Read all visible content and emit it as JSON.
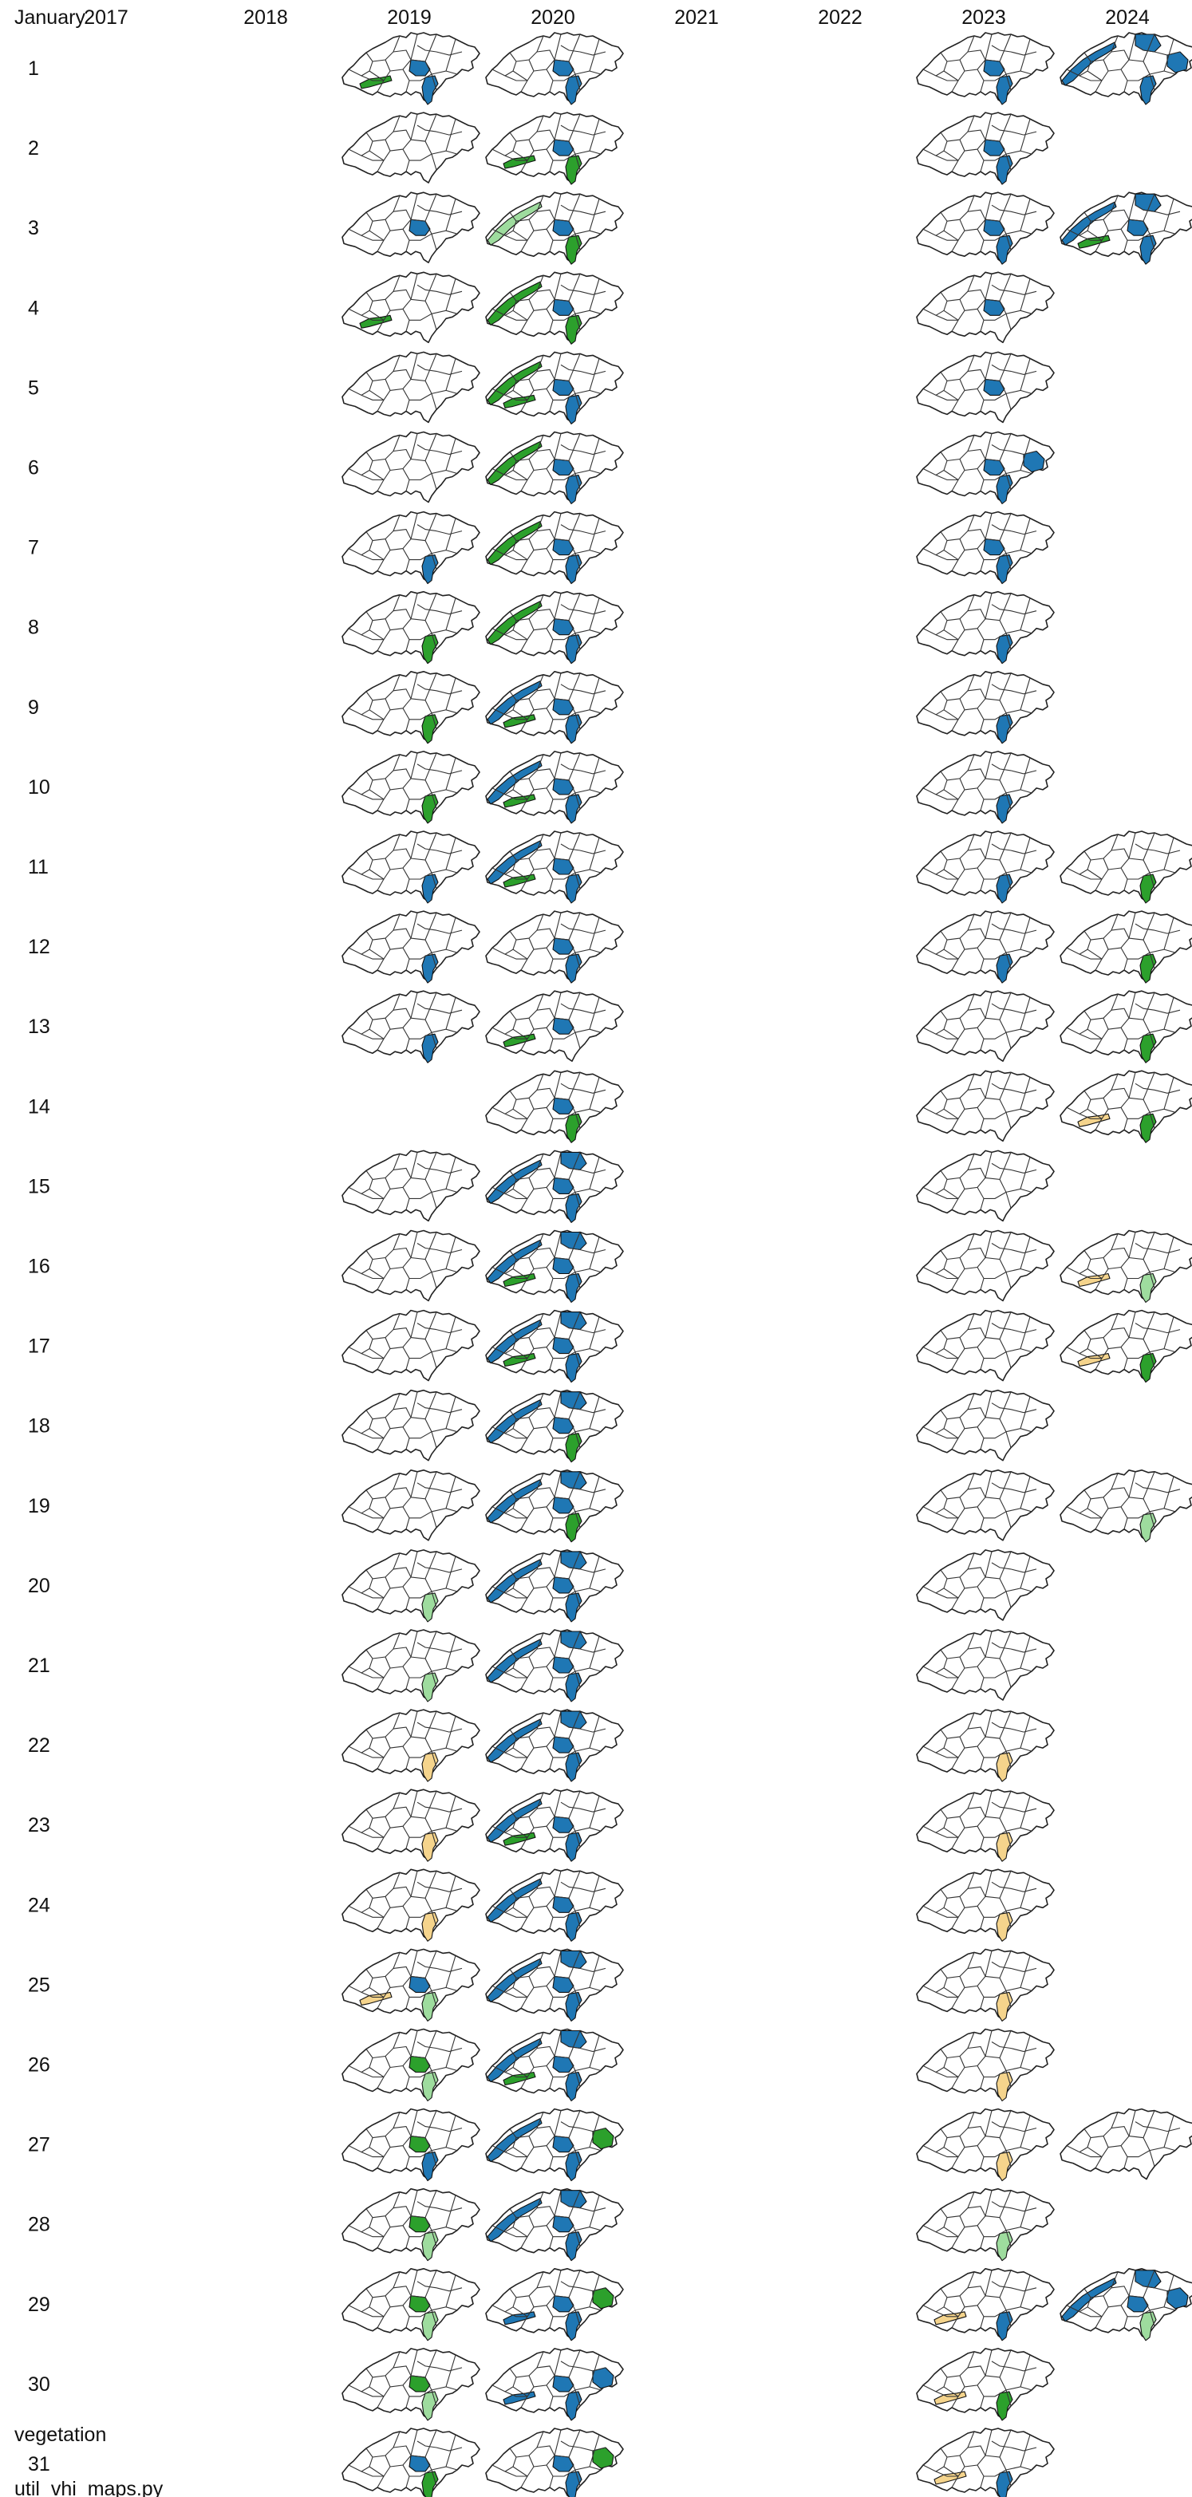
{
  "month": "January",
  "years": [
    "2017",
    "2018",
    "2019",
    "2020",
    "2021",
    "2022",
    "2023",
    "2024"
  ],
  "day_labels": [
    "1",
    "2",
    "3",
    "4",
    "5",
    "6",
    "7",
    "8",
    "9",
    "10",
    "11",
    "12",
    "13",
    "14",
    "15",
    "16",
    "17",
    "18",
    "19",
    "20",
    "21",
    "22",
    "23",
    "24",
    "25",
    "26",
    "27",
    "28",
    "29",
    "30",
    "31"
  ],
  "footer": {
    "category": "vegetation",
    "filename": "util_vhi_maps.py"
  },
  "colors": {
    "no_data": "#ffffff",
    "healthy": "#1f77b4",
    "moderate": "#2ca02c",
    "mild": "#9edc9e",
    "stress": "#f5d48c",
    "outline": "#222222"
  },
  "maps": [
    {
      "day": 1,
      "year": "2019",
      "regions": [
        "lake-geneva:moderate",
        "center:healthy",
        "south:healthy"
      ]
    },
    {
      "day": 1,
      "year": "2020",
      "regions": [
        "center:healthy",
        "south:healthy"
      ]
    },
    {
      "day": 1,
      "year": "2023",
      "regions": [
        "center:healthy",
        "south:healthy"
      ]
    },
    {
      "day": 1,
      "year": "2024",
      "regions": [
        "west-arc:healthy",
        "north:healthy",
        "east:healthy",
        "south:healthy"
      ]
    },
    {
      "day": 2,
      "year": "2019",
      "regions": []
    },
    {
      "day": 2,
      "year": "2020",
      "regions": [
        "center:healthy",
        "lake-geneva:moderate",
        "south:moderate"
      ]
    },
    {
      "day": 2,
      "year": "2023",
      "regions": [
        "center:healthy",
        "south:healthy"
      ]
    },
    {
      "day": 3,
      "year": "2019",
      "regions": [
        "center:healthy"
      ]
    },
    {
      "day": 3,
      "year": "2020",
      "regions": [
        "west-arc:mild",
        "center:healthy",
        "south:moderate"
      ]
    },
    {
      "day": 3,
      "year": "2023",
      "regions": [
        "center:healthy",
        "south:healthy"
      ]
    },
    {
      "day": 3,
      "year": "2024",
      "regions": [
        "west-arc:healthy",
        "north:healthy",
        "center:healthy",
        "lake-geneva:moderate",
        "south:healthy"
      ]
    },
    {
      "day": 4,
      "year": "2019",
      "regions": [
        "lake-geneva:moderate"
      ]
    },
    {
      "day": 4,
      "year": "2020",
      "regions": [
        "west-arc:moderate",
        "center:healthy",
        "south:moderate"
      ]
    },
    {
      "day": 4,
      "year": "2023",
      "regions": [
        "center:healthy"
      ]
    },
    {
      "day": 5,
      "year": "2019",
      "regions": []
    },
    {
      "day": 5,
      "year": "2020",
      "regions": [
        "west-arc:moderate",
        "center:healthy",
        "lake-geneva:moderate",
        "south:healthy"
      ]
    },
    {
      "day": 5,
      "year": "2023",
      "regions": [
        "center:healthy"
      ]
    },
    {
      "day": 6,
      "year": "2019",
      "regions": []
    },
    {
      "day": 6,
      "year": "2020",
      "regions": [
        "west-arc:moderate",
        "center:healthy",
        "south:healthy"
      ]
    },
    {
      "day": 6,
      "year": "2023",
      "regions": [
        "center:healthy",
        "east:healthy",
        "south:healthy"
      ]
    },
    {
      "day": 7,
      "year": "2019",
      "regions": [
        "south:healthy"
      ]
    },
    {
      "day": 7,
      "year": "2020",
      "regions": [
        "west-arc:moderate",
        "center:healthy",
        "south:healthy"
      ]
    },
    {
      "day": 7,
      "year": "2023",
      "regions": [
        "center:healthy",
        "south:healthy"
      ]
    },
    {
      "day": 8,
      "year": "2019",
      "regions": [
        "south:moderate"
      ]
    },
    {
      "day": 8,
      "year": "2020",
      "regions": [
        "west-arc:moderate",
        "center:healthy",
        "south:healthy"
      ]
    },
    {
      "day": 8,
      "year": "2023",
      "regions": [
        "south:healthy"
      ]
    },
    {
      "day": 9,
      "year": "2019",
      "regions": [
        "south:moderate"
      ]
    },
    {
      "day": 9,
      "year": "2020",
      "regions": [
        "west-arc:healthy",
        "center:healthy",
        "lake-geneva:moderate",
        "south:healthy"
      ]
    },
    {
      "day": 9,
      "year": "2023",
      "regions": [
        "south:healthy"
      ]
    },
    {
      "day": 10,
      "year": "2019",
      "regions": [
        "south:moderate"
      ]
    },
    {
      "day": 10,
      "year": "2020",
      "regions": [
        "west-arc:healthy",
        "center:healthy",
        "lake-geneva:moderate",
        "south:healthy"
      ]
    },
    {
      "day": 10,
      "year": "2023",
      "regions": [
        "south:healthy"
      ]
    },
    {
      "day": 11,
      "year": "2019",
      "regions": [
        "south:healthy"
      ]
    },
    {
      "day": 11,
      "year": "2020",
      "regions": [
        "west-arc:healthy",
        "center:healthy",
        "lake-geneva:moderate",
        "south:healthy"
      ]
    },
    {
      "day": 11,
      "year": "2023",
      "regions": [
        "south:healthy"
      ]
    },
    {
      "day": 11,
      "year": "2024",
      "regions": [
        "south:moderate"
      ]
    },
    {
      "day": 12,
      "year": "2019",
      "regions": [
        "south:healthy"
      ]
    },
    {
      "day": 12,
      "year": "2020",
      "regions": [
        "center:healthy",
        "south:healthy"
      ]
    },
    {
      "day": 12,
      "year": "2023",
      "regions": [
        "south:healthy"
      ]
    },
    {
      "day": 12,
      "year": "2024",
      "regions": [
        "south:moderate"
      ]
    },
    {
      "day": 13,
      "year": "2019",
      "regions": [
        "south:healthy"
      ]
    },
    {
      "day": 13,
      "year": "2020",
      "regions": [
        "center:healthy",
        "lake-geneva:moderate"
      ]
    },
    {
      "day": 13,
      "year": "2023",
      "regions": []
    },
    {
      "day": 13,
      "year": "2024",
      "regions": [
        "south:moderate"
      ]
    },
    {
      "day": 14,
      "year": "2020",
      "regions": [
        "center:healthy",
        "south:moderate"
      ]
    },
    {
      "day": 14,
      "year": "2023",
      "regions": []
    },
    {
      "day": 14,
      "year": "2024",
      "regions": [
        "lake-geneva:stress",
        "south:moderate"
      ]
    },
    {
      "day": 15,
      "year": "2019",
      "regions": []
    },
    {
      "day": 15,
      "year": "2020",
      "regions": [
        "west-arc:healthy",
        "center:healthy",
        "north:healthy",
        "south:healthy"
      ]
    },
    {
      "day": 15,
      "year": "2023",
      "regions": []
    },
    {
      "day": 16,
      "year": "2019",
      "regions": []
    },
    {
      "day": 16,
      "year": "2020",
      "regions": [
        "west-arc:healthy",
        "center:healthy",
        "north:healthy",
        "lake-geneva:moderate",
        "south:healthy"
      ]
    },
    {
      "day": 16,
      "year": "2023",
      "regions": []
    },
    {
      "day": 16,
      "year": "2024",
      "regions": [
        "lake-geneva:stress",
        "south:mild"
      ]
    },
    {
      "day": 17,
      "year": "2019",
      "regions": []
    },
    {
      "day": 17,
      "year": "2020",
      "regions": [
        "west-arc:healthy",
        "center:healthy",
        "north:healthy",
        "lake-geneva:moderate",
        "south:healthy"
      ]
    },
    {
      "day": 17,
      "year": "2023",
      "regions": []
    },
    {
      "day": 17,
      "year": "2024",
      "regions": [
        "lake-geneva:stress",
        "south:moderate"
      ]
    },
    {
      "day": 18,
      "year": "2019",
      "regions": []
    },
    {
      "day": 18,
      "year": "2020",
      "regions": [
        "west-arc:healthy",
        "center:healthy",
        "north:healthy",
        "south:moderate"
      ]
    },
    {
      "day": 18,
      "year": "2023",
      "regions": []
    },
    {
      "day": 19,
      "year": "2019",
      "regions": []
    },
    {
      "day": 19,
      "year": "2020",
      "regions": [
        "west-arc:healthy",
        "center:healthy",
        "north:healthy",
        "south:moderate"
      ]
    },
    {
      "day": 19,
      "year": "2023",
      "regions": []
    },
    {
      "day": 19,
      "year": "2024",
      "regions": [
        "south:mild"
      ]
    },
    {
      "day": 20,
      "year": "2019",
      "regions": [
        "south:mild"
      ]
    },
    {
      "day": 20,
      "year": "2020",
      "regions": [
        "west-arc:healthy",
        "center:healthy",
        "north:healthy",
        "south:healthy"
      ]
    },
    {
      "day": 20,
      "year": "2023",
      "regions": []
    },
    {
      "day": 21,
      "year": "2019",
      "regions": [
        "south:mild"
      ]
    },
    {
      "day": 21,
      "year": "2020",
      "regions": [
        "west-arc:healthy",
        "center:healthy",
        "north:healthy",
        "south:healthy"
      ]
    },
    {
      "day": 21,
      "year": "2023",
      "regions": []
    },
    {
      "day": 22,
      "year": "2019",
      "regions": [
        "south:stress"
      ]
    },
    {
      "day": 22,
      "year": "2020",
      "regions": [
        "west-arc:healthy",
        "center:healthy",
        "north:healthy",
        "south:healthy"
      ]
    },
    {
      "day": 22,
      "year": "2023",
      "regions": [
        "south:stress"
      ]
    },
    {
      "day": 23,
      "year": "2019",
      "regions": [
        "south:stress"
      ]
    },
    {
      "day": 23,
      "year": "2020",
      "regions": [
        "west-arc:healthy",
        "center:healthy",
        "lake-geneva:moderate",
        "south:healthy"
      ]
    },
    {
      "day": 23,
      "year": "2023",
      "regions": [
        "south:stress"
      ]
    },
    {
      "day": 24,
      "year": "2019",
      "regions": [
        "south:stress"
      ]
    },
    {
      "day": 24,
      "year": "2020",
      "regions": [
        "west-arc:healthy",
        "center:healthy",
        "south:healthy"
      ]
    },
    {
      "day": 24,
      "year": "2023",
      "regions": [
        "south:stress"
      ]
    },
    {
      "day": 25,
      "year": "2019",
      "regions": [
        "center:healthy",
        "lake-geneva:stress",
        "south:mild"
      ]
    },
    {
      "day": 25,
      "year": "2020",
      "regions": [
        "west-arc:healthy",
        "center:healthy",
        "north:healthy",
        "south:healthy"
      ]
    },
    {
      "day": 25,
      "year": "2023",
      "regions": [
        "south:stress"
      ]
    },
    {
      "day": 26,
      "year": "2019",
      "regions": [
        "center:moderate",
        "south:mild"
      ]
    },
    {
      "day": 26,
      "year": "2020",
      "regions": [
        "west-arc:healthy",
        "center:healthy",
        "north:healthy",
        "lake-geneva:moderate",
        "south:healthy"
      ]
    },
    {
      "day": 26,
      "year": "2023",
      "regions": [
        "south:stress"
      ]
    },
    {
      "day": 27,
      "year": "2019",
      "regions": [
        "center:moderate",
        "south:healthy"
      ]
    },
    {
      "day": 27,
      "year": "2020",
      "regions": [
        "west-arc:healthy",
        "center:healthy",
        "east:moderate",
        "south:healthy"
      ]
    },
    {
      "day": 27,
      "year": "2023",
      "regions": [
        "south:stress"
      ]
    },
    {
      "day": 27,
      "year": "2024",
      "regions": []
    },
    {
      "day": 28,
      "year": "2019",
      "regions": [
        "center:moderate",
        "south:mild"
      ]
    },
    {
      "day": 28,
      "year": "2020",
      "regions": [
        "west-arc:healthy",
        "center:healthy",
        "north:healthy",
        "south:healthy"
      ]
    },
    {
      "day": 28,
      "year": "2023",
      "regions": [
        "south:mild"
      ]
    },
    {
      "day": 29,
      "year": "2019",
      "regions": [
        "center:moderate",
        "south:mild"
      ]
    },
    {
      "day": 29,
      "year": "2020",
      "regions": [
        "center:healthy",
        "east:moderate",
        "lake-geneva:healthy",
        "south:healthy"
      ]
    },
    {
      "day": 29,
      "year": "2023",
      "regions": [
        "lake-geneva:stress",
        "south:healthy"
      ]
    },
    {
      "day": 29,
      "year": "2024",
      "regions": [
        "west-arc:healthy",
        "north:healthy",
        "center:healthy",
        "east:healthy",
        "south:mild"
      ]
    },
    {
      "day": 30,
      "year": "2019",
      "regions": [
        "center:moderate",
        "south:mild"
      ]
    },
    {
      "day": 30,
      "year": "2020",
      "regions": [
        "center:healthy",
        "east:healthy",
        "lake-geneva:healthy",
        "south:healthy"
      ]
    },
    {
      "day": 30,
      "year": "2023",
      "regions": [
        "lake-geneva:stress",
        "south:moderate"
      ]
    },
    {
      "day": 31,
      "year": "2019",
      "regions": [
        "center:healthy",
        "south:moderate"
      ]
    },
    {
      "day": 31,
      "year": "2020",
      "regions": [
        "center:healthy",
        "east:moderate",
        "south:healthy"
      ]
    },
    {
      "day": 31,
      "year": "2023",
      "regions": [
        "lake-geneva:stress",
        "south:healthy"
      ]
    }
  ]
}
